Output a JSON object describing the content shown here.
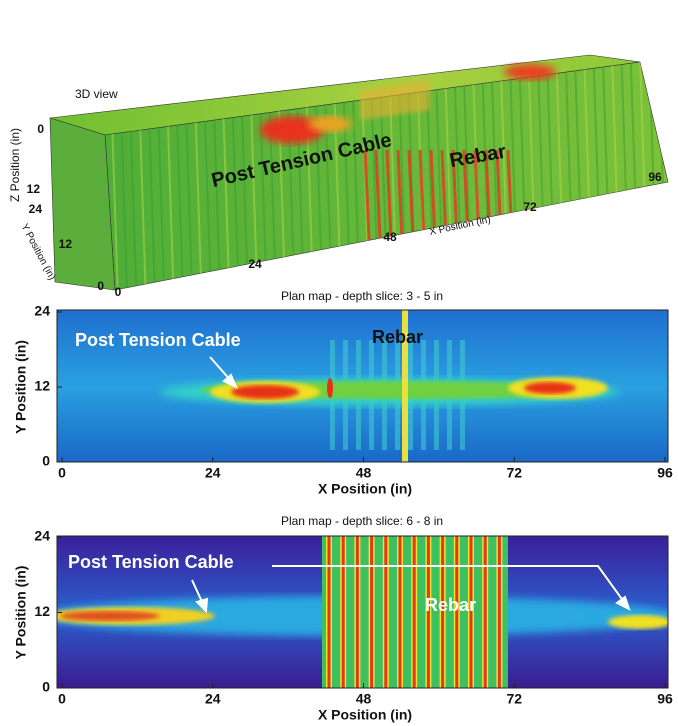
{
  "chart_data": [
    {
      "type": "heatmap3d",
      "title": "3D view",
      "xlabel": "X Position (in)",
      "ylabel": "Y Position (in)",
      "zlabel": "Z Position (in)",
      "xticks": [
        0,
        24,
        48,
        72,
        96
      ],
      "yticks": [
        0,
        12,
        24
      ],
      "zticks": [
        0,
        12
      ],
      "annotations": [
        "Post Tension Cable",
        "Rebar"
      ]
    },
    {
      "type": "heatmap",
      "title": "Plan map - depth slice: 3 - 5 in",
      "xlabel": "X Position (in)",
      "ylabel": "Y Position (in)",
      "xlim": [
        0,
        96
      ],
      "ylim": [
        0,
        24
      ],
      "xticks": [
        0,
        24,
        48,
        72,
        96
      ],
      "yticks": [
        0,
        12,
        24
      ],
      "annotations": [
        "Post Tension Cable",
        "Rebar"
      ]
    },
    {
      "type": "heatmap",
      "title": "Plan map - depth slice: 6 - 8 in",
      "xlabel": "X Position (in)",
      "ylabel": "Y Position (in)",
      "xlim": [
        0,
        96
      ],
      "ylim": [
        0,
        24
      ],
      "xticks": [
        0,
        24,
        48,
        72,
        96
      ],
      "yticks": [
        0,
        12,
        24
      ],
      "annotations": [
        "Post Tension Cable",
        "Rebar"
      ]
    }
  ]
}
